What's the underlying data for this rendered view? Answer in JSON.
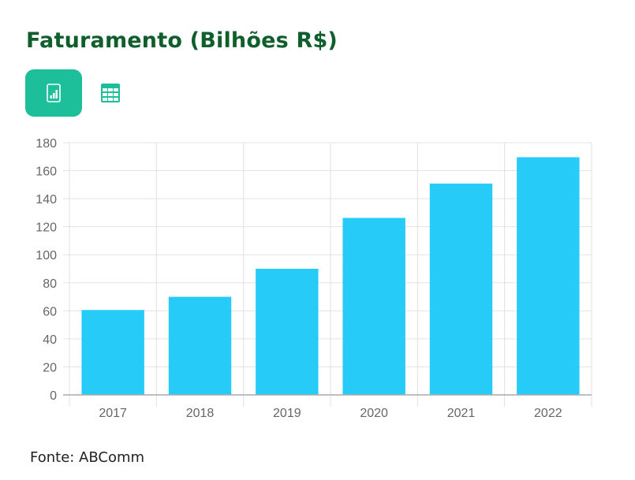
{
  "title": "Faturamento (Bilhões R$)",
  "view_buttons": [
    {
      "icon": "bar-chart-icon",
      "active": true
    },
    {
      "icon": "table-icon",
      "active": false
    }
  ],
  "colors": {
    "accent": "#1dbf9a",
    "bar": "#26ccf7",
    "title": "#0f5e2c"
  },
  "chart_data": {
    "type": "bar",
    "categories": [
      "2017",
      "2018",
      "2019",
      "2020",
      "2021",
      "2022"
    ],
    "values": [
      60.6,
      70,
      90,
      126.3,
      150.8,
      169.6
    ],
    "title": "",
    "xlabel": "",
    "ylabel": "",
    "ylim": [
      0,
      180
    ],
    "yticks": [
      0,
      20,
      40,
      60,
      80,
      100,
      120,
      140,
      160,
      180
    ],
    "grid": true,
    "legend": "none"
  },
  "source": "Fonte: ABComm"
}
